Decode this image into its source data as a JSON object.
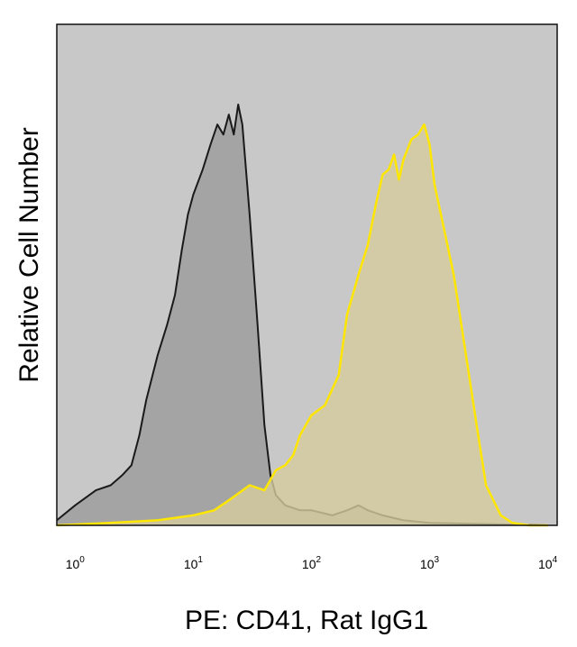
{
  "chart_data": {
    "type": "area",
    "title": "",
    "xlabel": "PE: CD41, Rat IgG1",
    "ylabel": "Relative Cell Number",
    "x_scale": "log",
    "xlim": [
      0.7,
      12000
    ],
    "ylim": [
      0,
      100
    ],
    "x_ticks": [
      {
        "base": "10",
        "exp": "0",
        "value": 1
      },
      {
        "base": "10",
        "exp": "1",
        "value": 10
      },
      {
        "base": "10",
        "exp": "2",
        "value": 100
      },
      {
        "base": "10",
        "exp": "3",
        "value": 1000
      },
      {
        "base": "10",
        "exp": "4",
        "value": 10000
      }
    ],
    "grid": false,
    "legend": "none",
    "colors": {
      "background": "#c8c8c8",
      "control_fill": "#a4a4a4",
      "control_line": "#1a1a1a",
      "stain_fill": "#d6cc9c",
      "stain_line": "#ffe600"
    },
    "series": [
      {
        "x": [
          0.7,
          1.0,
          1.5,
          2.0,
          2.5,
          3.0,
          3.5,
          4.0,
          5.0,
          6.0,
          7.0,
          8.0,
          9.0,
          10.0,
          12.0,
          14.0,
          16.0,
          18.0,
          20.0,
          22.0,
          24.0,
          26.0,
          30.0,
          35.0,
          40.0,
          45.0,
          50.0,
          60.0,
          80.0,
          100.0,
          150.0,
          200.0,
          250.0,
          300.0,
          400.0,
          600.0,
          1000.0,
          10000.0
        ],
        "y": [
          1,
          4,
          7,
          8,
          10,
          12,
          18,
          25,
          34,
          40,
          46,
          55,
          62,
          66,
          71,
          76,
          80,
          78,
          82,
          78,
          84,
          80,
          62,
          40,
          20,
          10,
          6,
          4,
          3,
          3,
          2,
          3,
          4,
          3,
          2,
          1,
          0.5,
          0
        ]
      },
      {
        "x": [
          0.7,
          2.0,
          5.0,
          10.0,
          15.0,
          20.0,
          30.0,
          40.0,
          50.0,
          60.0,
          70.0,
          80.0,
          100.0,
          130.0,
          170.0,
          200.0,
          250.0,
          300.0,
          350.0,
          400.0,
          450.0,
          500.0,
          550.0,
          600.0,
          700.0,
          800.0,
          900.0,
          1000.0,
          1100.0,
          1300.0,
          1600.0,
          2000.0,
          2500.0,
          3000.0,
          4000.0,
          5000.0,
          7000.0,
          10000.0
        ],
        "y": [
          0,
          0.5,
          1,
          2,
          3,
          5,
          8,
          7,
          11,
          12,
          14,
          18,
          22,
          24,
          30,
          42,
          50,
          56,
          64,
          70,
          71,
          74,
          69,
          73,
          77,
          78,
          80,
          76,
          68,
          60,
          50,
          35,
          20,
          8,
          2,
          0.5,
          0,
          0
        ]
      }
    ]
  }
}
